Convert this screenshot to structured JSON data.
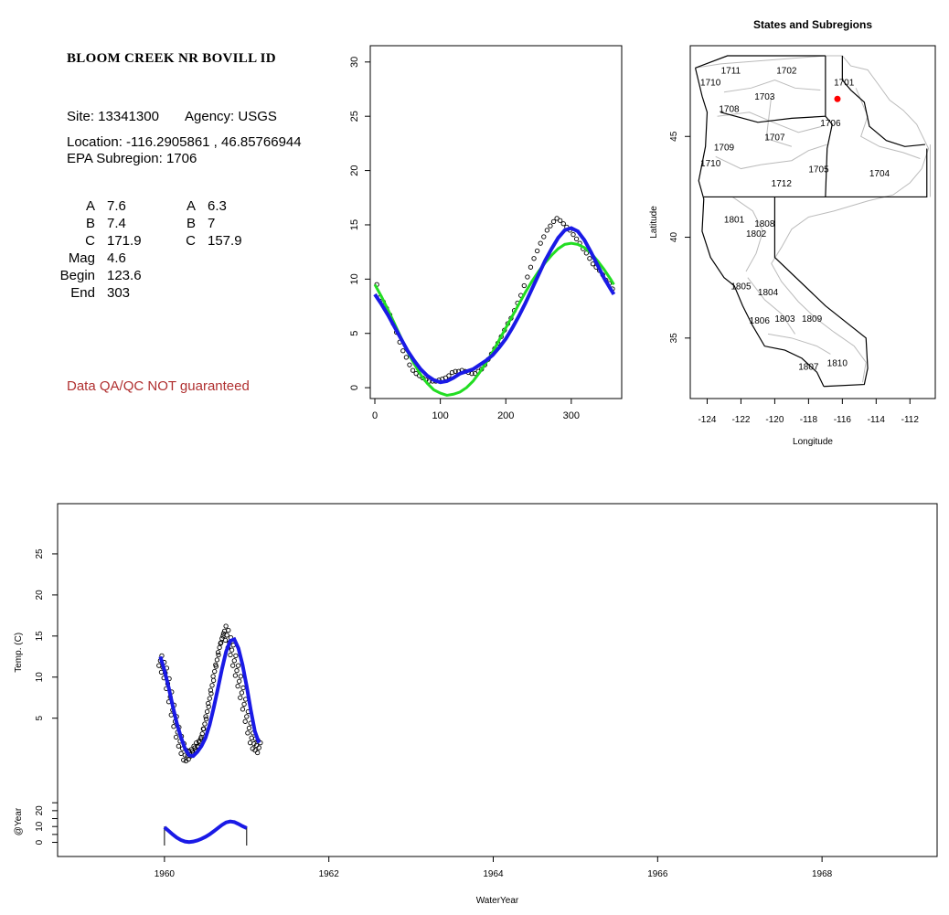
{
  "site": {
    "title": "BLOOM CREEK NR BOVILL ID",
    "site_line": "Site: 13341300",
    "agency_line": "Agency: USGS",
    "location_line": "Location: -116.2905861 , 46.85766944",
    "subregion_line": "EPA Subregion: 1706",
    "qa_note": "Data QA/QC NOT guaranteed"
  },
  "params": {
    "left": [
      {
        "name": "A",
        "value": "7.6"
      },
      {
        "name": "B",
        "value": "7.4"
      },
      {
        "name": "C",
        "value": "171.9"
      },
      {
        "name": "Mag",
        "value": "4.6"
      },
      {
        "name": "Begin",
        "value": "123.6"
      },
      {
        "name": "End",
        "value": "303"
      }
    ],
    "right": [
      {
        "name": "A",
        "value": "6.3"
      },
      {
        "name": "B",
        "value": "7"
      },
      {
        "name": "C",
        "value": "157.9"
      }
    ]
  },
  "colors": {
    "green": "#22dd22",
    "blue": "#1a1ae6",
    "site_point": "#ff0000",
    "state_border": "#000000",
    "region_border": "#bbbbbb"
  },
  "chart_data": [
    {
      "type": "scatter",
      "title": "",
      "xlabel": "",
      "ylabel": "",
      "xlim": [
        -7,
        377
      ],
      "ylim": [
        -1,
        31.5
      ],
      "xticks": [
        0,
        100,
        200,
        300
      ],
      "yticks": [
        0,
        5,
        10,
        15,
        20,
        25,
        30
      ],
      "series": [
        {
          "kind": "points",
          "x": [
            3,
            8,
            13,
            18,
            23,
            28,
            33,
            38,
            43,
            48,
            53,
            58,
            63,
            68,
            73,
            78,
            83,
            88,
            93,
            98,
            103,
            108,
            113,
            118,
            123,
            128,
            133,
            138,
            143,
            148,
            153,
            158,
            163,
            168,
            173,
            178,
            183,
            188,
            193,
            198,
            203,
            208,
            213,
            218,
            223,
            228,
            233,
            238,
            243,
            248,
            253,
            258,
            263,
            268,
            273,
            278,
            283,
            288,
            293,
            298,
            303,
            308,
            313,
            318,
            323,
            328,
            333,
            338,
            343,
            348,
            353,
            358,
            363
          ],
          "y": [
            9.5,
            8.3,
            7.9,
            7.3,
            6.7,
            5.9,
            5.1,
            4.2,
            3.4,
            2.8,
            2.1,
            1.6,
            1.3,
            1.1,
            0.9,
            0.7,
            0.6,
            0.6,
            0.6,
            0.7,
            0.8,
            0.9,
            1.1,
            1.4,
            1.5,
            1.5,
            1.6,
            1.5,
            1.4,
            1.3,
            1.3,
            1.5,
            1.7,
            2.1,
            2.6,
            3.1,
            3.6,
            4.1,
            4.7,
            5.3,
            5.9,
            6.4,
            7.1,
            7.8,
            8.5,
            9.4,
            10.2,
            11.1,
            11.9,
            12.6,
            13.3,
            13.9,
            14.5,
            14.9,
            15.3,
            15.6,
            15.4,
            15.1,
            14.8,
            14.5,
            14.1,
            13.7,
            13.3,
            12.8,
            12.4,
            11.9,
            11.4,
            11.1,
            10.8,
            10.4,
            9.9,
            9.6,
            9.1
          ]
        },
        {
          "kind": "line",
          "x": [
            0,
            10,
            20,
            30,
            40,
            50,
            60,
            70,
            80,
            90,
            100,
            110,
            120,
            130,
            140,
            150,
            160,
            170,
            180,
            190,
            200,
            210,
            220,
            230,
            240,
            250,
            260,
            270,
            280,
            290,
            300,
            310,
            320,
            330,
            340,
            350,
            360,
            365
          ],
          "y": [
            8.6,
            7.7,
            6.7,
            5.6,
            4.5,
            3.4,
            2.5,
            1.7,
            1.1,
            0.7,
            0.5,
            0.6,
            0.9,
            1.3,
            1.5,
            1.7,
            2.1,
            2.5,
            3.0,
            3.7,
            4.5,
            5.5,
            6.6,
            7.8,
            9.1,
            10.4,
            11.7,
            12.8,
            13.8,
            14.5,
            14.7,
            14.4,
            13.6,
            12.5,
            11.3,
            10.1,
            9.1,
            8.6
          ]
        },
        {
          "kind": "line",
          "x": [
            0,
            10,
            20,
            30,
            40,
            50,
            60,
            70,
            80,
            90,
            100,
            110,
            120,
            130,
            140,
            150,
            160,
            170,
            180,
            190,
            200,
            210,
            220,
            230,
            240,
            250,
            260,
            270,
            280,
            290,
            300,
            310,
            320,
            330,
            340,
            350,
            360,
            365
          ],
          "y": [
            9.5,
            8.4,
            7.2,
            5.9,
            4.6,
            3.3,
            2.2,
            1.2,
            0.4,
            -0.2,
            -0.5,
            -0.7,
            -0.6,
            -0.4,
            0.0,
            0.6,
            1.4,
            2.3,
            3.3,
            4.4,
            5.5,
            6.6,
            7.7,
            8.8,
            9.8,
            10.7,
            11.5,
            12.2,
            12.8,
            13.2,
            13.3,
            13.2,
            12.9,
            12.4,
            11.7,
            10.9,
            10.0,
            9.5
          ]
        }
      ]
    },
    {
      "type": "map",
      "title": "States and Subregions",
      "xlabel": "Longitude",
      "ylabel": "Latitude",
      "xlim": [
        -125,
        -110.5
      ],
      "ylim": [
        32,
        49.5
      ],
      "xticks": [
        -124,
        -122,
        -120,
        -118,
        -116,
        -114,
        -112
      ],
      "yticks": [
        35,
        40,
        45
      ],
      "site_point": {
        "lon": -116.29,
        "lat": 46.86
      },
      "labels": [
        {
          "text": "1711",
          "lon": -122.6,
          "lat": 48.3
        },
        {
          "text": "1702",
          "lon": -119.3,
          "lat": 48.3
        },
        {
          "text": "1701",
          "lon": -115.9,
          "lat": 47.7
        },
        {
          "text": "1710",
          "lon": -123.8,
          "lat": 47.7
        },
        {
          "text": "1703",
          "lon": -120.6,
          "lat": 47.0
        },
        {
          "text": "1708",
          "lon": -122.7,
          "lat": 46.4
        },
        {
          "text": "1706",
          "lon": -116.7,
          "lat": 45.7
        },
        {
          "text": "1707",
          "lon": -120.0,
          "lat": 45.0
        },
        {
          "text": "1709",
          "lon": -123.0,
          "lat": 44.5
        },
        {
          "text": "1710",
          "lon": -123.8,
          "lat": 43.7
        },
        {
          "text": "1705",
          "lon": -117.4,
          "lat": 43.4
        },
        {
          "text": "1704",
          "lon": -113.8,
          "lat": 43.2
        },
        {
          "text": "1712",
          "lon": -119.6,
          "lat": 42.7
        },
        {
          "text": "1801",
          "lon": -122.4,
          "lat": 40.9
        },
        {
          "text": "1808",
          "lon": -120.6,
          "lat": 40.7
        },
        {
          "text": "1802",
          "lon": -121.1,
          "lat": 40.2
        },
        {
          "text": "1805",
          "lon": -122.0,
          "lat": 37.6
        },
        {
          "text": "1804",
          "lon": -120.4,
          "lat": 37.3
        },
        {
          "text": "1809",
          "lon": -117.8,
          "lat": 36.0
        },
        {
          "text": "1806",
          "lon": -120.9,
          "lat": 35.9
        },
        {
          "text": "1803",
          "lon": -119.4,
          "lat": 36.0
        },
        {
          "text": "1810",
          "lon": -116.3,
          "lat": 33.8
        },
        {
          "text": "1807",
          "lon": -118.0,
          "lat": 33.6
        }
      ]
    },
    {
      "type": "scatter",
      "title": "",
      "xlabel": "WaterYear",
      "ylabel": "Temp. (C)",
      "xlim": [
        1958.7,
        1969.4
      ],
      "ylim": [
        -0.5,
        30
      ],
      "xticks": [
        1960,
        1962,
        1964,
        1966,
        1968
      ],
      "yticks": [
        5,
        10,
        15,
        20,
        25
      ],
      "series": [
        {
          "kind": "points",
          "x": [
            1959.95,
            1959.98,
            1960.01,
            1960.04,
            1960.07,
            1960.1,
            1960.13,
            1960.16,
            1960.19,
            1960.22,
            1960.25,
            1960.28,
            1960.31,
            1960.34,
            1960.37,
            1960.4,
            1960.43,
            1960.46,
            1960.49,
            1960.52,
            1960.55,
            1960.58,
            1960.61,
            1960.64,
            1960.67,
            1960.7,
            1960.73,
            1960.76,
            1960.79,
            1960.82,
            1960.85,
            1960.88,
            1960.91,
            1960.94,
            1960.97,
            1961.0,
            1961.03,
            1961.06,
            1961.09,
            1961.12,
            1961.15
          ],
          "y": [
            12.0,
            11.2,
            10.5,
            9.2,
            7.6,
            6.0,
            4.6,
            3.3,
            2.2,
            1.3,
            0.5,
            0.4,
            0.6,
            1.0,
            1.4,
            1.6,
            2.1,
            3.1,
            4.3,
            5.8,
            7.4,
            9.0,
            10.7,
            12.1,
            13.6,
            14.7,
            15.6,
            15.1,
            14.2,
            13.3,
            12.0,
            10.8,
            9.5,
            8.1,
            6.7,
            5.2,
            3.8,
            2.6,
            1.9,
            1.7,
            1.4
          ]
        },
        {
          "kind": "line",
          "x": [
            1959.95,
            1960.0,
            1960.05,
            1960.1,
            1960.15,
            1960.2,
            1960.25,
            1960.3,
            1960.35,
            1960.4,
            1960.45,
            1960.5,
            1960.55,
            1960.6,
            1960.65,
            1960.7,
            1960.75,
            1960.8,
            1960.85,
            1960.9,
            1960.95,
            1961.0,
            1961.05,
            1961.1,
            1961.15
          ],
          "y": [
            12.5,
            10.8,
            8.8,
            6.5,
            4.4,
            2.7,
            1.3,
            0.5,
            0.4,
            0.9,
            1.6,
            2.6,
            4.2,
            6.3,
            8.6,
            11.0,
            13.1,
            14.4,
            14.6,
            13.5,
            11.5,
            8.9,
            6.0,
            3.4,
            2.0
          ]
        }
      ],
      "inset": {
        "ylabel": "@Year",
        "yticks": [
          0,
          10,
          20
        ],
        "ytick_labels": [
          "0",
          "10",
          "20"
        ],
        "extra_ticks": [
          5,
          15,
          25
        ],
        "ylim": [
          -2,
          28
        ],
        "line": {
          "x": [
            1960.0,
            1960.05,
            1960.1,
            1960.15,
            1960.2,
            1960.25,
            1960.3,
            1960.35,
            1960.4,
            1960.45,
            1960.5,
            1960.55,
            1960.6,
            1960.65,
            1960.7,
            1960.75,
            1960.8,
            1960.85,
            1960.9,
            1960.95,
            1961.0
          ],
          "y": [
            9.5,
            7.3,
            5.0,
            3.0,
            1.5,
            0.5,
            0.2,
            0.5,
            1.2,
            2.2,
            3.5,
            5.1,
            7.0,
            9.0,
            11.0,
            12.6,
            13.2,
            12.8,
            11.6,
            10.2,
            9.0
          ]
        },
        "bounds": [
          1960.0,
          1961.0
        ]
      }
    }
  ]
}
